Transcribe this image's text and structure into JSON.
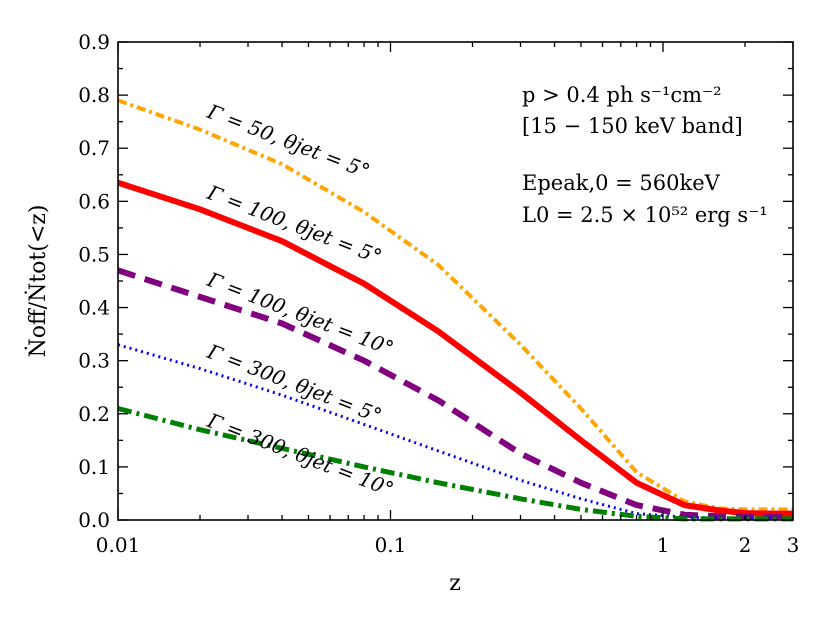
{
  "chart_data": {
    "type": "line",
    "x_scale": "log",
    "xlabel": "z",
    "ylabel": "Ṅoff/Ṅtot(<z)",
    "xlim": [
      0.01,
      3
    ],
    "ylim": [
      0,
      0.9
    ],
    "x_ticks": [
      {
        "value": 0.01,
        "label": "0.01"
      },
      {
        "value": 0.1,
        "label": "0.1"
      },
      {
        "value": 1,
        "label": "1"
      },
      {
        "value": 2,
        "label": "2"
      },
      {
        "value": 3,
        "label": "3"
      }
    ],
    "y_ticks": [
      {
        "value": 0.0,
        "label": "0.0"
      },
      {
        "value": 0.1,
        "label": "0.1"
      },
      {
        "value": 0.2,
        "label": "0.2"
      },
      {
        "value": 0.3,
        "label": "0.3"
      },
      {
        "value": 0.4,
        "label": "0.4"
      },
      {
        "value": 0.5,
        "label": "0.5"
      },
      {
        "value": 0.6,
        "label": "0.6"
      },
      {
        "value": 0.7,
        "label": "0.7"
      },
      {
        "value": 0.8,
        "label": "0.8"
      },
      {
        "value": 0.9,
        "label": "0.9"
      }
    ],
    "annotations": [
      "p > 0.4 ph s⁻¹cm⁻²",
      "[15 − 150 keV band]",
      "Epeak,0 = 560keV",
      "L0 = 2.5 × 10⁵² erg s⁻¹"
    ],
    "series": [
      {
        "name": "Γ = 50, θjet = 5°",
        "color": "#FFA500",
        "style": "dashdot-fine",
        "width": 4,
        "x": [
          0.01,
          0.02,
          0.04,
          0.08,
          0.15,
          0.3,
          0.5,
          0.8,
          1.2,
          1.6,
          2.0,
          2.5,
          3.0
        ],
        "y": [
          0.79,
          0.735,
          0.67,
          0.58,
          0.48,
          0.33,
          0.21,
          0.09,
          0.035,
          0.022,
          0.02,
          0.02,
          0.02
        ]
      },
      {
        "name": "Γ = 100, θjet = 5°",
        "color": "#FF0000",
        "style": "solid",
        "width": 6,
        "x": [
          0.01,
          0.02,
          0.04,
          0.08,
          0.15,
          0.3,
          0.5,
          0.8,
          1.2,
          1.6,
          2.0,
          2.5,
          3.0
        ],
        "y": [
          0.635,
          0.585,
          0.525,
          0.445,
          0.355,
          0.24,
          0.15,
          0.07,
          0.028,
          0.018,
          0.013,
          0.012,
          0.012
        ]
      },
      {
        "name": "Γ = 100, θjet = 10°",
        "color": "#800080",
        "style": "dashed",
        "width": 6,
        "x": [
          0.01,
          0.02,
          0.04,
          0.08,
          0.15,
          0.3,
          0.5,
          0.8,
          1.2,
          1.6,
          2.0,
          2.5,
          3.0
        ],
        "y": [
          0.47,
          0.42,
          0.37,
          0.3,
          0.225,
          0.125,
          0.07,
          0.028,
          0.01,
          0.007,
          0.006,
          0.006,
          0.006
        ]
      },
      {
        "name": "Γ = 300, θjet = 5°",
        "color": "#0000FF",
        "style": "dotted",
        "width": 3,
        "x": [
          0.01,
          0.02,
          0.04,
          0.08,
          0.15,
          0.3,
          0.5,
          0.8,
          1.2,
          1.6,
          2.0,
          2.5,
          3.0
        ],
        "y": [
          0.33,
          0.285,
          0.235,
          0.18,
          0.13,
          0.075,
          0.04,
          0.012,
          0.005,
          0.004,
          0.004,
          0.004,
          0.004
        ]
      },
      {
        "name": "Γ = 300, θjet = 10°",
        "color": "#008000",
        "style": "dashdot",
        "width": 5,
        "x": [
          0.01,
          0.02,
          0.04,
          0.08,
          0.15,
          0.3,
          0.5,
          0.8,
          1.2,
          1.6,
          2.0,
          2.5,
          3.0
        ],
        "y": [
          0.21,
          0.17,
          0.135,
          0.1,
          0.07,
          0.04,
          0.02,
          0.007,
          0.002,
          0.002,
          0.002,
          0.002,
          0.002
        ]
      }
    ]
  }
}
